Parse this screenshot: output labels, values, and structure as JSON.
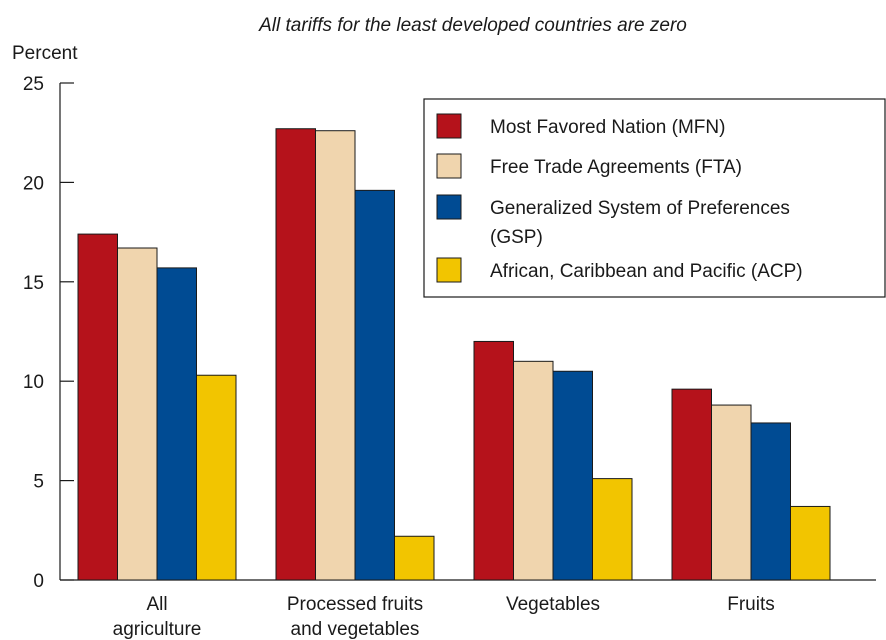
{
  "chart_data": {
    "type": "bar",
    "title": "All tariffs for the least developed countries are zero",
    "ylabel": "Percent",
    "xlabel": "",
    "ylim": [
      0,
      25
    ],
    "yticks": [
      0,
      5,
      10,
      15,
      20,
      25
    ],
    "grid": false,
    "legend_position": "top-right",
    "categories": [
      [
        "All",
        "agriculture"
      ],
      [
        "Processed fruits",
        "and vegetables"
      ],
      [
        "Vegetables"
      ],
      [
        "Fruits"
      ]
    ],
    "series": [
      {
        "name": "Most Favored Nation (MFN)",
        "name_lines": [
          "Most Favored Nation (MFN)"
        ],
        "color": "#b5121b",
        "values": [
          17.4,
          22.7,
          12.0,
          9.6
        ]
      },
      {
        "name": "Free Trade Agreements (FTA)",
        "name_lines": [
          "Free Trade Agreements (FTA)"
        ],
        "color": "#f0d5ae",
        "values": [
          16.7,
          22.6,
          11.0,
          8.8
        ]
      },
      {
        "name": "Generalized System of Preferences (GSP)",
        "name_lines": [
          "Generalized System of Preferences",
          "(GSP)"
        ],
        "color": "#004b93",
        "values": [
          15.7,
          19.6,
          10.5,
          7.9
        ]
      },
      {
        "name": "African, Caribbean and Pacific (ACP)",
        "name_lines": [
          "African, Caribbean and Pacific (ACP)"
        ],
        "color": "#f2c500",
        "values": [
          10.3,
          2.2,
          5.1,
          3.7
        ]
      }
    ]
  }
}
